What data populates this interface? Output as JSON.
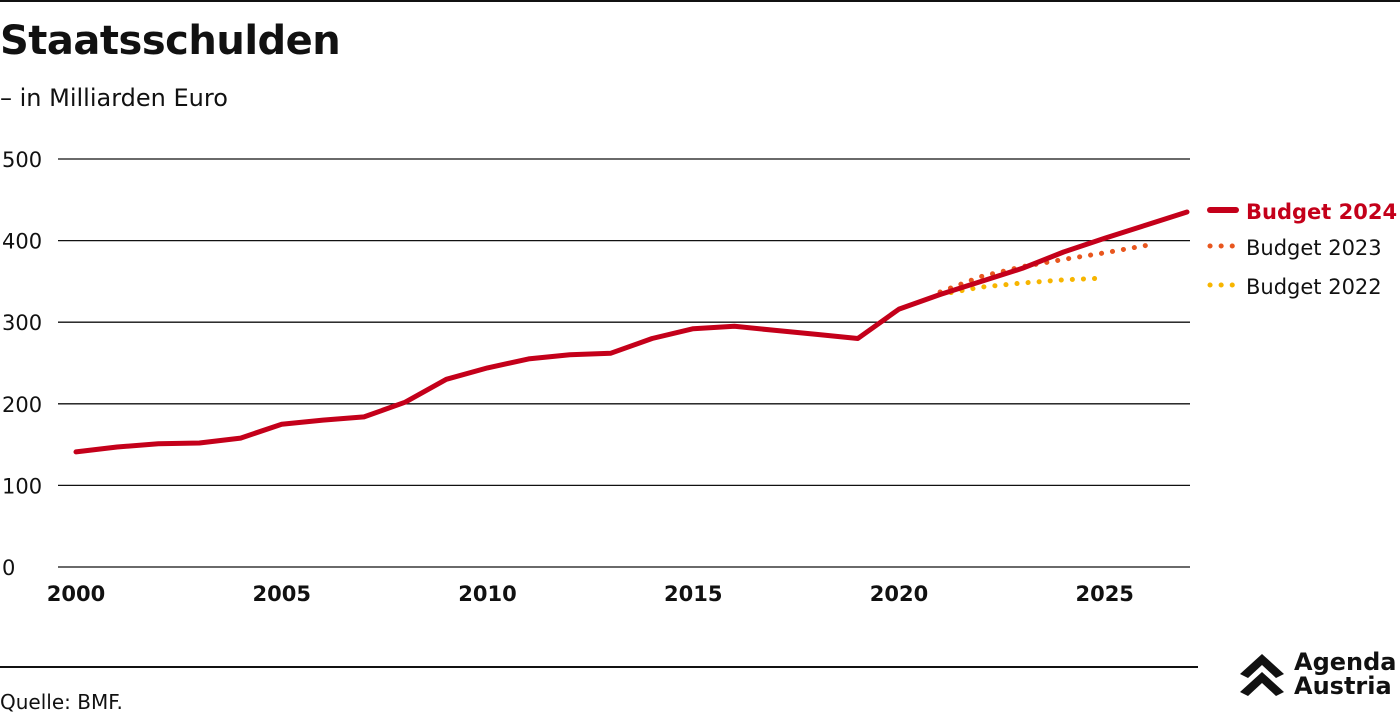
{
  "chart_data": {
    "type": "line",
    "title": "Staatsschulden",
    "subtitle": "– in Milliarden Euro",
    "xlabel": "",
    "ylabel": "",
    "xlim": [
      2000,
      2027
    ],
    "ylim": [
      0,
      500
    ],
    "x_ticks": [
      "2000",
      "2005",
      "2010",
      "2015",
      "2020",
      "2025"
    ],
    "y_ticks": [
      "0",
      "100",
      "200",
      "300",
      "400",
      "500"
    ],
    "grid": true,
    "legend_position": "right",
    "series": [
      {
        "name": "Budget 2024",
        "style": "solid",
        "color": "#c4001a",
        "x": [
          2000,
          2001,
          2002,
          2003,
          2004,
          2005,
          2006,
          2007,
          2008,
          2009,
          2010,
          2011,
          2012,
          2013,
          2014,
          2015,
          2016,
          2017,
          2018,
          2019,
          2020,
          2021,
          2022,
          2023,
          2024,
          2025,
          2026,
          2027
        ],
        "values": [
          141,
          147,
          151,
          152,
          158,
          175,
          180,
          184,
          202,
          230,
          244,
          255,
          260,
          262,
          280,
          292,
          295,
          290,
          285,
          280,
          316,
          334,
          350,
          366,
          386,
          403,
          419,
          435
        ]
      },
      {
        "name": "Budget 2023",
        "style": "dotted",
        "color": "#e8561e",
        "x": [
          2021,
          2022,
          2023,
          2024,
          2025,
          2026
        ],
        "values": [
          337,
          356,
          368,
          377,
          385,
          394
        ]
      },
      {
        "name": "Budget 2022",
        "style": "dotted",
        "color": "#f7b500",
        "x": [
          2021,
          2022,
          2023,
          2024,
          2025
        ],
        "values": [
          334,
          343,
          348,
          352,
          354
        ]
      }
    ]
  },
  "footer": {
    "source": "Quelle: BMF.",
    "logo_line1": "Agenda",
    "logo_line2": "Austria"
  }
}
